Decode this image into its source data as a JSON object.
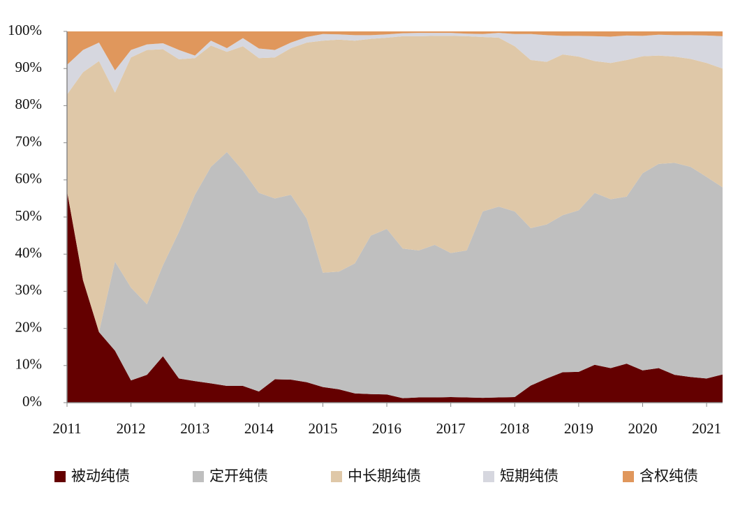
{
  "chart_data": {
    "type": "stacked-area",
    "x": [
      2011,
      2011.25,
      2011.5,
      2011.75,
      2012,
      2012.25,
      2012.5,
      2012.75,
      2013,
      2013.25,
      2013.5,
      2013.75,
      2014,
      2014.25,
      2014.5,
      2014.75,
      2015,
      2015.25,
      2015.5,
      2015.75,
      2016,
      2016.25,
      2016.5,
      2016.75,
      2017,
      2017.25,
      2017.5,
      2017.75,
      2018,
      2018.25,
      2018.5,
      2018.75,
      2019,
      2019.25,
      2019.5,
      2019.75,
      2020,
      2020.25,
      2020.5,
      2020.75,
      2021,
      2021.25
    ],
    "series": [
      {
        "name": "被动纯债",
        "color": "#640000",
        "values": [
          57,
          33,
          19,
          14,
          6,
          7.5,
          12.5,
          6.5,
          5.8,
          5.2,
          4.5,
          4.5,
          3,
          6.3,
          6.2,
          5.5,
          4.2,
          3.6,
          2.5,
          2.3,
          2.2,
          1.2,
          1.4,
          1.4,
          1.5,
          1.4,
          1.3,
          1.4,
          1.5,
          4.6,
          6.5,
          8.2,
          8.3,
          10.2,
          9.3,
          10.5,
          8.7,
          9.3,
          7.5,
          6.9,
          6.5,
          7.6
        ]
      },
      {
        "name": "定开纯债",
        "color": "#bfbfbf",
        "values": [
          0,
          0,
          0,
          24,
          25,
          19,
          24.5,
          39.5,
          50.2,
          58.3,
          63,
          58,
          53.5,
          48.7,
          49.8,
          44,
          30.8,
          31.7,
          35,
          42.7,
          44.6,
          40.3,
          39.6,
          41.1,
          38.8,
          39.6,
          50.2,
          51.4,
          50,
          42.4,
          41.5,
          42.3,
          43.5,
          46.3,
          45.5,
          45,
          53.1,
          55,
          57.1,
          56.6,
          54.3,
          50.4
        ]
      },
      {
        "name": "中长期纯债",
        "color": "#dfc8a8",
        "values": [
          26,
          56,
          73,
          45.5,
          62,
          68.5,
          58.2,
          46.5,
          36.8,
          32.7,
          27,
          33.5,
          36.3,
          38,
          39.5,
          47.5,
          62.5,
          62.5,
          60,
          53,
          51.5,
          57.2,
          57.7,
          56.3,
          58.5,
          57.7,
          47,
          45.5,
          44.5,
          45.3,
          43.8,
          43.3,
          41.4,
          35.5,
          36.7,
          36.8,
          31.5,
          29.2,
          28.6,
          29.1,
          30.7,
          32
        ]
      },
      {
        "name": "短期纯债",
        "color": "#d6d7df",
        "values": [
          8,
          6,
          5,
          6,
          2,
          1.5,
          1.6,
          2.5,
          0.7,
          1.3,
          1,
          2.2,
          2.6,
          2,
          1.5,
          1.5,
          1.8,
          1.4,
          1.5,
          1,
          0.9,
          0.8,
          0.9,
          0.8,
          0.8,
          0.7,
          0.8,
          1.3,
          3.3,
          7,
          7.2,
          5,
          5.6,
          6.7,
          7.1,
          6.6,
          5.5,
          5.6,
          5.8,
          6.4,
          7.4,
          8.7
        ]
      },
      {
        "name": "含权纯债",
        "color": "#e0975c",
        "values": [
          9,
          5,
          3,
          10.5,
          5,
          3.5,
          3.2,
          5,
          6.5,
          2.5,
          4.5,
          1.8,
          4.6,
          5,
          3,
          1.5,
          0.7,
          0.8,
          1,
          1,
          0.8,
          0.5,
          0.4,
          0.4,
          0.4,
          0.6,
          0.7,
          0.4,
          0.7,
          0.7,
          1,
          1.2,
          1.2,
          1.3,
          1.4,
          1.1,
          1.2,
          0.9,
          1,
          1,
          1.1,
          1.3
        ]
      }
    ],
    "xlim": [
      2011,
      2021.25
    ],
    "xticks": [
      2011,
      2012,
      2013,
      2014,
      2015,
      2016,
      2017,
      2018,
      2019,
      2020,
      2021
    ],
    "ylim": [
      0,
      100
    ],
    "yticks": [
      {
        "value": 0,
        "label": "0%"
      },
      {
        "value": 10,
        "label": "10%"
      },
      {
        "value": 20,
        "label": "20%"
      },
      {
        "value": 30,
        "label": "30%"
      },
      {
        "value": 40,
        "label": "40%"
      },
      {
        "value": 50,
        "label": "50%"
      },
      {
        "value": 60,
        "label": "60%"
      },
      {
        "value": 70,
        "label": "70%"
      },
      {
        "value": 80,
        "label": "80%"
      },
      {
        "value": 90,
        "label": "90%"
      },
      {
        "value": 100,
        "label": "100%"
      }
    ],
    "legend": "bottom"
  }
}
